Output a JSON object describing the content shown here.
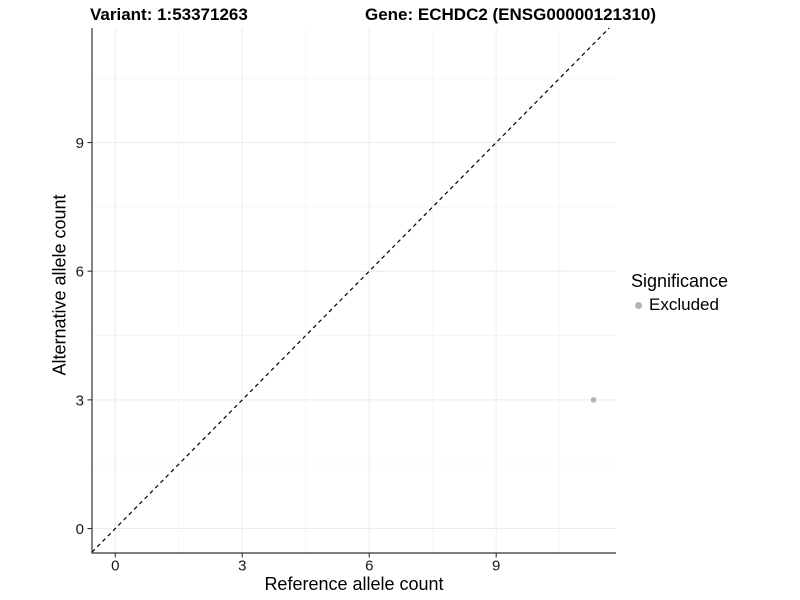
{
  "chart_data": {
    "type": "scatter",
    "titles": {
      "left": "Variant: 1:53371263",
      "right": "Gene: ECHDC2 (ENSG00000121310)"
    },
    "xlabel": "Reference allele count",
    "ylabel": "Alternative allele count",
    "x_ticks": [
      0,
      3,
      6,
      9
    ],
    "y_ticks": [
      0,
      3,
      6,
      9
    ],
    "x_minor_ticks": [
      1.5,
      4.5,
      7.5,
      10.5
    ],
    "y_minor_ticks": [
      1.5,
      4.5,
      7.5,
      10.5
    ],
    "xlim": [
      -0.55,
      11.83
    ],
    "ylim": [
      -0.57,
      11.67
    ],
    "grid": true,
    "identity_line": {
      "slope": 1,
      "intercept": 0,
      "style": "dashed",
      "color": "#000000"
    },
    "series": [
      {
        "name": "Excluded",
        "color": "#b3b3b3",
        "points": [
          {
            "x": 11.3,
            "y": 3
          }
        ]
      }
    ],
    "legend": {
      "title": "Significance",
      "position": "right",
      "entries": [
        {
          "label": "Excluded",
          "color": "#b3b3b3"
        }
      ]
    },
    "colors": {
      "background": "#ffffff",
      "axis_line": "#333333",
      "tick_mark": "#333333",
      "tick_label": "#1a1a1a",
      "grid_major": "#ececec",
      "grid_minor": "#f6f6f6"
    }
  }
}
